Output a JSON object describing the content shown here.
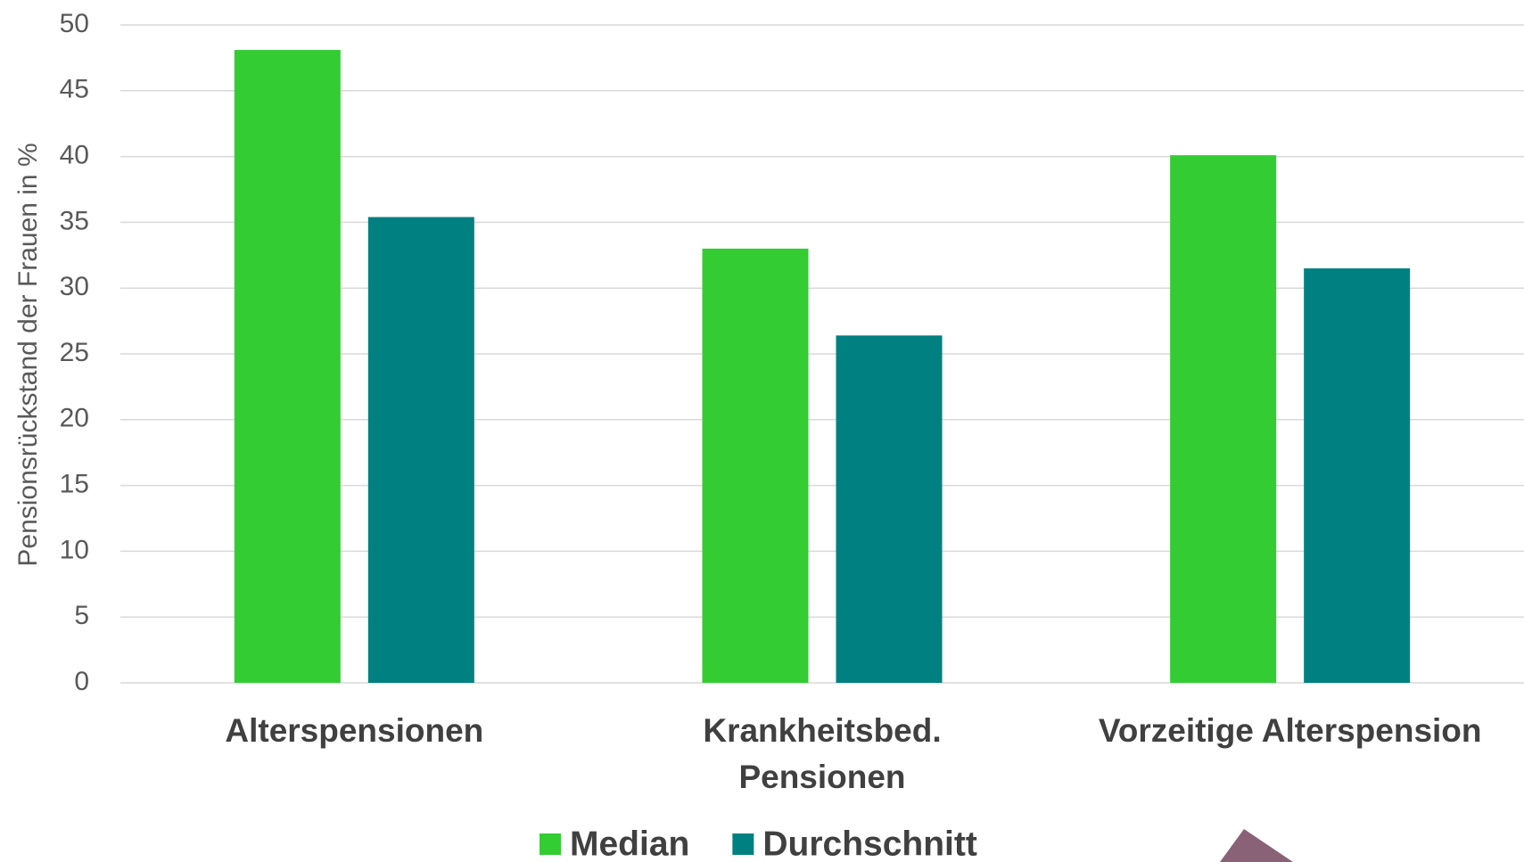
{
  "chart_data": {
    "type": "bar",
    "y_label": "Pensionsrückstand der Frauen in %",
    "categories": [
      "Alterspensionen",
      "Krankheitsbed.\nPensionen",
      "Vorzeitige Alterspension"
    ],
    "series": [
      {
        "name": "Median",
        "color": "#33cc33",
        "values": [
          48.1,
          33.0,
          40.1
        ]
      },
      {
        "name": "Durchschnitt",
        "color": "#008080",
        "values": [
          35.4,
          26.4,
          31.5
        ]
      }
    ],
    "ylim": [
      0,
      50
    ],
    "yticks": [
      0,
      5,
      10,
      15,
      20,
      25,
      30,
      35,
      40,
      45,
      50
    ],
    "grid": true,
    "legend": "bottom"
  }
}
